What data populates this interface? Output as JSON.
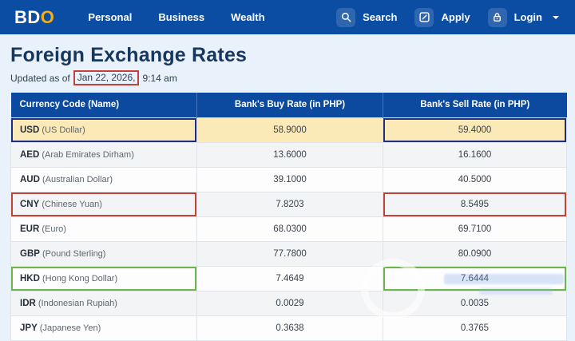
{
  "nav": {
    "logo": {
      "part1": "BD",
      "part2": "O"
    },
    "links": [
      {
        "label": "Personal"
      },
      {
        "label": "Business"
      },
      {
        "label": "Wealth"
      }
    ],
    "search_label": "Search",
    "apply_label": "Apply",
    "login_label": "Login"
  },
  "page": {
    "title": "Foreign Exchange Rates",
    "updated_prefix": "Updated as of",
    "updated_date": "Jan 22, 2026,",
    "updated_time": "9:14 am"
  },
  "table": {
    "headers": [
      "Currency Code (Name)",
      "Bank's Buy Rate (in PHP)",
      "Bank's Sell Rate (in PHP)"
    ],
    "rows": [
      {
        "code": "USD",
        "name": "(US Dollar)",
        "buy": "58.9000",
        "sell": "59.4000",
        "row_bg": "yellow",
        "highlight": "blue"
      },
      {
        "code": "AED",
        "name": "(Arab Emirates Dirham)",
        "buy": "13.6000",
        "sell": "16.1600"
      },
      {
        "code": "AUD",
        "name": "(Australian Dollar)",
        "buy": "39.1000",
        "sell": "40.5000"
      },
      {
        "code": "CNY",
        "name": "(Chinese Yuan)",
        "buy": "7.8203",
        "sell": "8.5495",
        "highlight": "red"
      },
      {
        "code": "EUR",
        "name": "(Euro)",
        "buy": "68.0300",
        "sell": "69.7100"
      },
      {
        "code": "GBP",
        "name": "(Pound Sterling)",
        "buy": "77.7800",
        "sell": "80.0900"
      },
      {
        "code": "HKD",
        "name": "(Hong Kong Dollar)",
        "buy": "7.4649",
        "sell": "7.6444",
        "highlight": "green"
      },
      {
        "code": "IDR",
        "name": "(Indonesian Rupiah)",
        "buy": "0.0029",
        "sell": "0.0035"
      },
      {
        "code": "JPY",
        "name": "(Japanese Yen)",
        "buy": "0.3638",
        "sell": "0.3765"
      }
    ]
  },
  "colors": {
    "nav_bg": "#0c4da4",
    "table_header_bg": "#0c4a9f",
    "logo_gold": "#f2ae14",
    "highlight_row_yellow": "#fbe9b8",
    "annotation_blue": "#1e2d7d",
    "annotation_red": "#c0443a",
    "annotation_green": "#6fb54c",
    "date_box_red": "#c2423a",
    "title_text": "#17375f"
  }
}
